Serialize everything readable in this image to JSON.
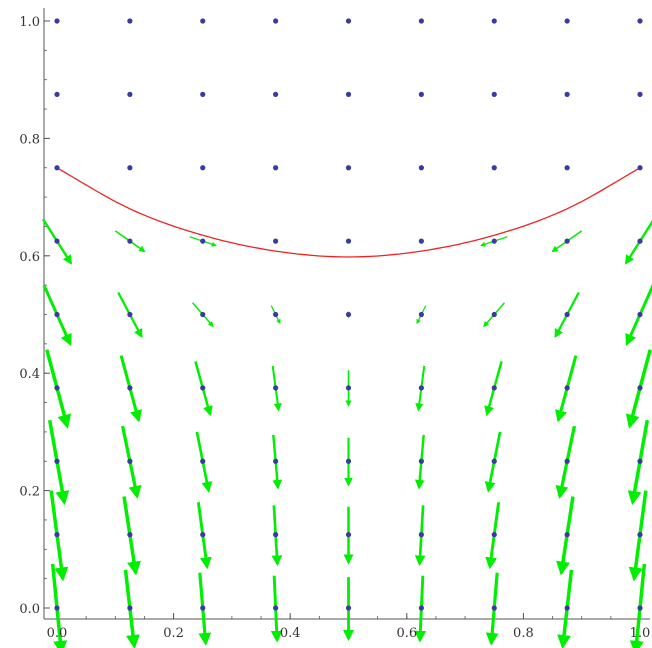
{
  "chart_data": {
    "type": "vector-field",
    "xlim": [
      0,
      1
    ],
    "ylim": [
      0,
      1
    ],
    "x_ticks": [
      "0.0",
      "0.2",
      "0.4",
      "0.6",
      "0.8",
      "1.0"
    ],
    "y_ticks": [
      "0.0",
      "0.2",
      "0.4",
      "0.6",
      "0.8",
      "1.0"
    ],
    "grid": false,
    "colors": {
      "points": "#3a3aa0",
      "arrows": "#00ee00",
      "curve": "#ee2222",
      "axes": "#555555"
    },
    "grid_points": {
      "x": [
        0,
        0.125,
        0.25,
        0.375,
        0.5,
        0.625,
        0.75,
        0.875,
        1.0
      ],
      "y": [
        0,
        0.125,
        0.25,
        0.375,
        0.5,
        0.625,
        0.75,
        0.875,
        1.0
      ]
    },
    "field": {
      "defined_below_y": 0.7,
      "arrow_rows": [
        {
          "y": 0.625,
          "arrows": [
            [
              0,
              0.625,
              0.048,
              -0.075
            ],
            [
              0.125,
              0.625,
              0.05,
              -0.035
            ],
            [
              0.25,
              0.625,
              0.045,
              -0.015
            ],
            [
              0.375,
              0.625,
              0,
              0
            ],
            [
              0.5,
              0.625,
              0,
              0
            ],
            [
              0.625,
              0.625,
              0,
              0
            ],
            [
              0.75,
              0.625,
              -0.045,
              -0.015
            ],
            [
              0.875,
              0.625,
              -0.05,
              -0.035
            ],
            [
              1.0,
              0.625,
              -0.048,
              -0.075
            ]
          ]
        },
        {
          "y": 0.5,
          "arrows": [
            [
              0,
              0.5,
              0.045,
              -0.1
            ],
            [
              0.125,
              0.5,
              0.04,
              -0.075
            ],
            [
              0.25,
              0.5,
              0.035,
              -0.04
            ],
            [
              0.375,
              0.5,
              0.015,
              -0.03
            ],
            [
              0.5,
              0.5,
              0,
              -0.01
            ],
            [
              0.625,
              0.5,
              -0.015,
              -0.03
            ],
            [
              0.75,
              0.5,
              -0.035,
              -0.04
            ],
            [
              0.875,
              0.5,
              -0.04,
              -0.075
            ],
            [
              1.0,
              0.5,
              -0.045,
              -0.1
            ]
          ]
        },
        {
          "y": 0.375,
          "arrows": [
            [
              0,
              0.375,
              0.035,
              -0.13
            ],
            [
              0.125,
              0.375,
              0.03,
              -0.11
            ],
            [
              0.25,
              0.375,
              0.025,
              -0.09
            ],
            [
              0.375,
              0.375,
              0.01,
              -0.075
            ],
            [
              0.5,
              0.375,
              0,
              -0.06
            ],
            [
              0.625,
              0.375,
              -0.01,
              -0.075
            ],
            [
              0.75,
              0.375,
              -0.025,
              -0.09
            ],
            [
              0.875,
              0.375,
              -0.03,
              -0.11
            ],
            [
              1.0,
              0.375,
              -0.035,
              -0.13
            ]
          ]
        },
        {
          "y": 0.25,
          "arrows": [
            [
              0,
              0.25,
              0.025,
              -0.14
            ],
            [
              0.125,
              0.25,
              0.025,
              -0.12
            ],
            [
              0.25,
              0.25,
              0.02,
              -0.1
            ],
            [
              0.375,
              0.25,
              0.008,
              -0.09
            ],
            [
              0.5,
              0.25,
              0,
              -0.08
            ],
            [
              0.625,
              0.25,
              -0.008,
              -0.09
            ],
            [
              0.75,
              0.25,
              -0.02,
              -0.1
            ],
            [
              0.875,
              0.25,
              -0.025,
              -0.12
            ],
            [
              1.0,
              0.25,
              -0.025,
              -0.14
            ]
          ]
        },
        {
          "y": 0.125,
          "arrows": [
            [
              0,
              0.125,
              0.02,
              -0.15
            ],
            [
              0.125,
              0.125,
              0.02,
              -0.13
            ],
            [
              0.25,
              0.125,
              0.015,
              -0.11
            ],
            [
              0.375,
              0.125,
              0.006,
              -0.1
            ],
            [
              0.5,
              0.125,
              0,
              -0.095
            ],
            [
              0.625,
              0.125,
              -0.006,
              -0.1
            ],
            [
              0.75,
              0.125,
              -0.015,
              -0.11
            ],
            [
              0.875,
              0.125,
              -0.02,
              -0.13
            ],
            [
              1.0,
              0.125,
              -0.02,
              -0.15
            ]
          ]
        },
        {
          "y": 0.0,
          "arrows": [
            [
              0,
              0.0,
              0.015,
              -0.15
            ],
            [
              0.125,
              0.0,
              0.015,
              -0.13
            ],
            [
              0.25,
              0.0,
              0.01,
              -0.12
            ],
            [
              0.375,
              0.0,
              0.005,
              -0.11
            ],
            [
              0.5,
              0.0,
              0,
              -0.105
            ],
            [
              0.625,
              0.0,
              -0.005,
              -0.11
            ],
            [
              0.75,
              0.0,
              -0.01,
              -0.12
            ],
            [
              0.875,
              0.0,
              -0.015,
              -0.13
            ],
            [
              1.0,
              0.0,
              -0.015,
              -0.15
            ]
          ]
        }
      ]
    },
    "curve": {
      "name": "",
      "points": [
        [
          0,
          0.75
        ],
        [
          0.125,
          0.68
        ],
        [
          0.25,
          0.635
        ],
        [
          0.375,
          0.608
        ],
        [
          0.5,
          0.598
        ],
        [
          0.625,
          0.608
        ],
        [
          0.75,
          0.635
        ],
        [
          0.875,
          0.68
        ],
        [
          1.0,
          0.75
        ]
      ]
    }
  }
}
